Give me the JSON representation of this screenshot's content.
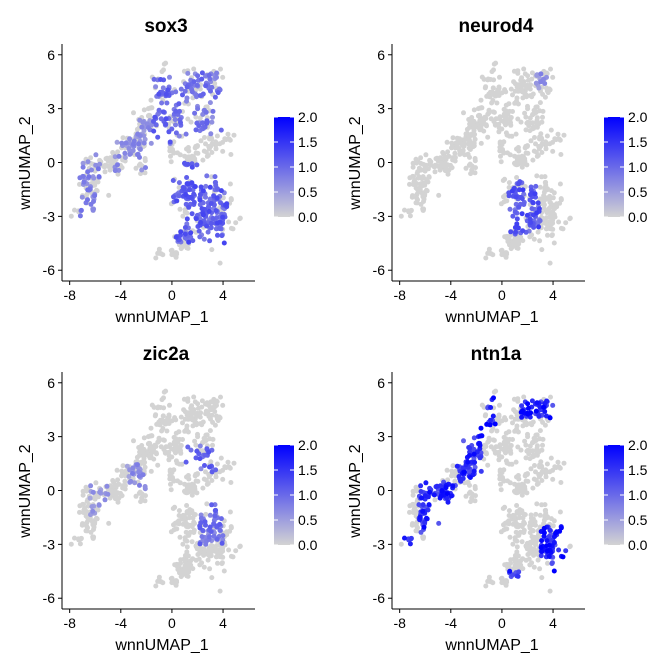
{
  "chart_data": [
    {
      "type": "scatter",
      "title": "sox3",
      "xlabel": "wnnUMAP_1",
      "ylabel": "wnnUMAP_2",
      "xlim": [
        -8.6,
        6.5
      ],
      "ylim": [
        -6.6,
        6.6
      ],
      "xticks": [
        -8,
        -4,
        0,
        4
      ],
      "yticks": [
        -6,
        -3,
        0,
        3,
        6
      ],
      "color_scale": {
        "low": "#d3d3d3",
        "high": "#0000ff",
        "min": 0,
        "max": 2,
        "ticks": [
          "0.0",
          "0.5",
          "1.0",
          "1.5",
          "2.0"
        ]
      },
      "regions": [
        {
          "x": [
            -7.5,
            -5.5
          ],
          "y": [
            -3.2,
            0.5
          ],
          "level": 0.9
        },
        {
          "x": [
            -4.5,
            -1.5
          ],
          "y": [
            -0.5,
            2.5
          ],
          "level": 0.8
        },
        {
          "x": [
            -1.5,
            1.0
          ],
          "y": [
            1.0,
            5.0
          ],
          "level": 1.2
        },
        {
          "x": [
            1.0,
            4.0
          ],
          "y": [
            1.5,
            5.0
          ],
          "level": 1.1
        },
        {
          "x": [
            0.0,
            4.5
          ],
          "y": [
            -4.5,
            0.0
          ],
          "level": 1.3
        }
      ]
    },
    {
      "type": "scatter",
      "title": "neurod4",
      "xlabel": "wnnUMAP_1",
      "ylabel": "wnnUMAP_2",
      "xlim": [
        -8.6,
        6.5
      ],
      "ylim": [
        -6.6,
        6.6
      ],
      "xticks": [
        -8,
        -4,
        0,
        4
      ],
      "yticks": [
        -6,
        -3,
        0,
        3,
        6
      ],
      "color_scale": {
        "low": "#d3d3d3",
        "high": "#0000ff",
        "min": 0,
        "max": 2,
        "ticks": [
          "0.0",
          "0.5",
          "1.0",
          "1.5",
          "2.0"
        ]
      },
      "regions": [
        {
          "x": [
            0.5,
            3.0
          ],
          "y": [
            -4.0,
            -1.0
          ],
          "level": 1.4
        },
        {
          "x": [
            2.5,
            3.5
          ],
          "y": [
            4.0,
            5.0
          ],
          "level": 0.8
        }
      ]
    },
    {
      "type": "scatter",
      "title": "zic2a",
      "xlabel": "wnnUMAP_1",
      "ylabel": "wnnUMAP_2",
      "xlim": [
        -8.6,
        6.5
      ],
      "ylim": [
        -6.6,
        6.6
      ],
      "xticks": [
        -8,
        -4,
        0,
        4
      ],
      "yticks": [
        -6,
        -3,
        0,
        3,
        6
      ],
      "color_scale": {
        "low": "#d3d3d3",
        "high": "#0000ff",
        "min": 0,
        "max": 2,
        "ticks": [
          "0.0",
          "0.5",
          "1.0",
          "1.5",
          "2.0"
        ]
      },
      "regions": [
        {
          "x": [
            -6.5,
            -5.0
          ],
          "y": [
            -1.5,
            0.5
          ],
          "level": 0.7
        },
        {
          "x": [
            -3.5,
            -1.0
          ],
          "y": [
            0.0,
            1.5
          ],
          "level": 0.8
        },
        {
          "x": [
            1.0,
            3.5
          ],
          "y": [
            1.0,
            2.5
          ],
          "level": 1.2
        },
        {
          "x": [
            2.0,
            4.0
          ],
          "y": [
            -3.0,
            0.0
          ],
          "level": 1.1
        }
      ]
    },
    {
      "type": "scatter",
      "title": "ntn1a",
      "xlabel": "wnnUMAP_1",
      "ylabel": "wnnUMAP_2",
      "xlim": [
        -8.6,
        6.5
      ],
      "ylim": [
        -6.6,
        6.6
      ],
      "xticks": [
        -8,
        -4,
        0,
        4
      ],
      "yticks": [
        -6,
        -3,
        0,
        3,
        6
      ],
      "color_scale": {
        "low": "#d3d3d3",
        "high": "#0000ff",
        "min": 0,
        "max": 2,
        "ticks": [
          "0.0",
          "0.5",
          "1.0",
          "1.5",
          "2.0"
        ]
      },
      "regions": [
        {
          "x": [
            -6.5,
            -3.5
          ],
          "y": [
            -2.5,
            0.5
          ],
          "level": 1.9
        },
        {
          "x": [
            -3.5,
            -1.5
          ],
          "y": [
            0.5,
            4.0
          ],
          "level": 1.9
        },
        {
          "x": [
            -1.2,
            -0.5
          ],
          "y": [
            3.5,
            5.2
          ],
          "level": 2.0
        },
        {
          "x": [
            1.5,
            4.0
          ],
          "y": [
            4.0,
            5.0
          ],
          "level": 2.0
        },
        {
          "x": [
            3.0,
            5.0
          ],
          "y": [
            -4.5,
            -2.0
          ],
          "level": 2.0
        },
        {
          "x": [
            0.5,
            2.0
          ],
          "y": [
            -5.3,
            -4.5
          ],
          "level": 1.9
        },
        {
          "x": [
            -7.8,
            -6.8
          ],
          "y": [
            -3.0,
            -2.5
          ],
          "level": 1.8
        }
      ]
    }
  ]
}
